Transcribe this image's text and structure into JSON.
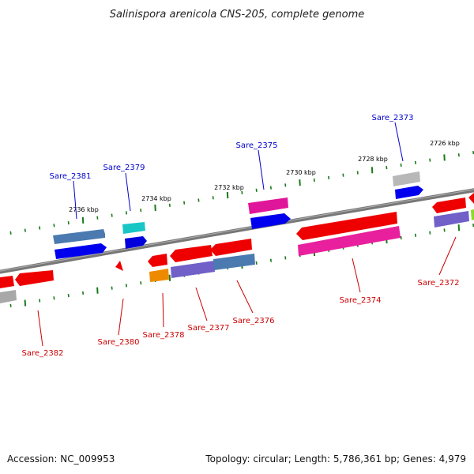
{
  "title": "Salinispora arenicola CNS-205, complete genome",
  "footer": {
    "accession": "Accession: NC_009953",
    "topology": "Topology: circular; Length: 5,786,361 bp; Genes: 4,979"
  },
  "colors": {
    "backbone": "#808080",
    "tick": "#1a7a1a",
    "label_top": "#0000cc",
    "label_bottom": "#cc0000"
  },
  "ticks": [
    "2736 kbp",
    "2734 kbp",
    "2732 kbp",
    "2730 kbp",
    "2728 kbp",
    "2726 kbp"
  ],
  "genes_top": [
    {
      "name": "Sare_2381",
      "color": "#0000ee"
    },
    {
      "name": "Sare_2379",
      "color": "#0000cc"
    },
    {
      "name": "Sare_2375",
      "color": "#0000ee"
    },
    {
      "name": "Sare_2373",
      "color": "#0000dd"
    }
  ],
  "genes_bottom": [
    {
      "name": "Sare_2382",
      "color": "#dd0000"
    },
    {
      "name": "Sare_2380",
      "color": "#dd0000"
    },
    {
      "name": "Sare_2378",
      "color": "#dd0000"
    },
    {
      "name": "Sare_2377",
      "color": "#dd0000"
    },
    {
      "name": "Sare_2376",
      "color": "#dd0000"
    },
    {
      "name": "Sare_2374",
      "color": "#dd0000"
    },
    {
      "name": "Sare_2372",
      "color": "#dd0000"
    }
  ]
}
